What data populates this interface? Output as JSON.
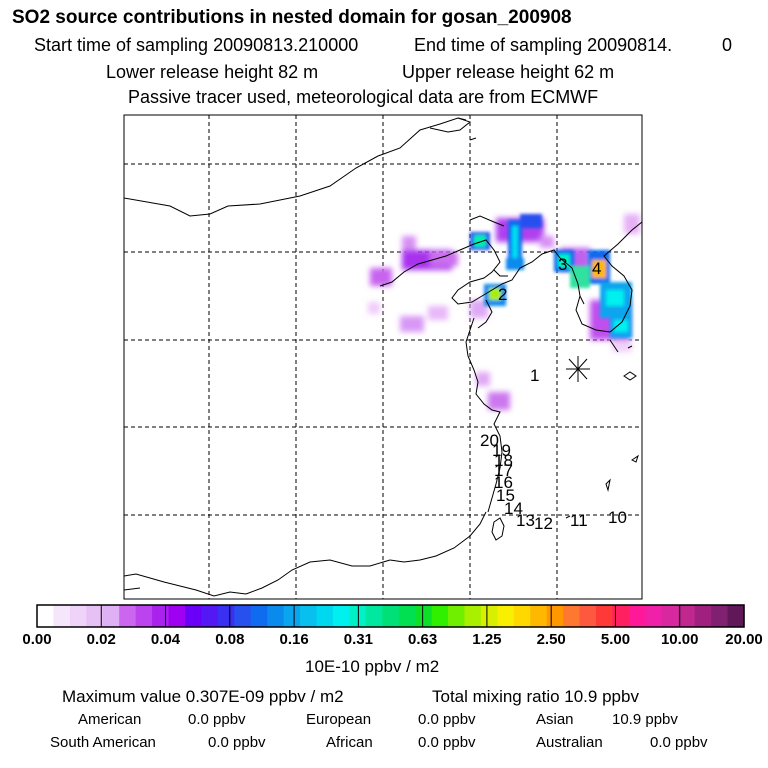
{
  "header": {
    "title": "SO2 source contributions in nested domain for gosan_200908",
    "start_label": "Start time of sampling 20090813.210000",
    "end_label": "End time of sampling 20090814.",
    "end_suffix": "0",
    "lower_label": "Lower release height   82 m",
    "upper_label": "Upper release height   62 m",
    "tracer_note": "Passive tracer used, meteorological data are from ECMWF"
  },
  "map": {
    "track_labels": [
      "1",
      "2",
      "3",
      "4",
      "10",
      "11",
      "12",
      "13",
      "14",
      "15",
      "16",
      "17",
      "18",
      "19",
      "20"
    ],
    "station_marker": "asterisk"
  },
  "colorbar": {
    "tick_labels": [
      "0.00",
      "0.02",
      "0.04",
      "0.08",
      "0.16",
      "0.31",
      "0.63",
      "1.25",
      "2.50",
      "5.00",
      "10.00",
      "20.00"
    ],
    "colors": [
      "#ffffff",
      "#f6e6fb",
      "#efd3f8",
      "#e7c0f6",
      "#dfb0f3",
      "#cc66ee",
      "#bb44ee",
      "#aa22ee",
      "#9f00f2",
      "#6a00f7",
      "#5418f5",
      "#3a30f2",
      "#2850ef",
      "#106cef",
      "#0a8aed",
      "#0aa5ee",
      "#08c0ef",
      "#00d8ef",
      "#00f0ef",
      "#00f0c8",
      "#00e8a0",
      "#00e078",
      "#00e050",
      "#0ce028",
      "#30f000",
      "#70f000",
      "#a8f000",
      "#d8f000",
      "#f8f000",
      "#ffd800",
      "#ffb800",
      "#ff9800",
      "#ff7830",
      "#ff5840",
      "#ff3838",
      "#ff2060",
      "#ff1898",
      "#f020a8",
      "#d828a0",
      "#c02890",
      "#a02080",
      "#802070",
      "#601858"
    ],
    "units": "10E-10 ppbv / m2"
  },
  "summary": {
    "max_label": "Maximum value  0.307E-09 ppbv / m2",
    "total_label": "Total mixing ratio       10.9 ppbv",
    "regions": [
      {
        "name": "American",
        "value": "0.0 ppbv"
      },
      {
        "name": "European",
        "value": "0.0 ppbv"
      },
      {
        "name": "Asian",
        "value": "10.9 ppbv"
      },
      {
        "name": "South American",
        "value": "0.0 ppbv"
      },
      {
        "name": "African",
        "value": "0.0 ppbv"
      },
      {
        "name": "Australian",
        "value": "0.0 ppbv"
      }
    ]
  }
}
